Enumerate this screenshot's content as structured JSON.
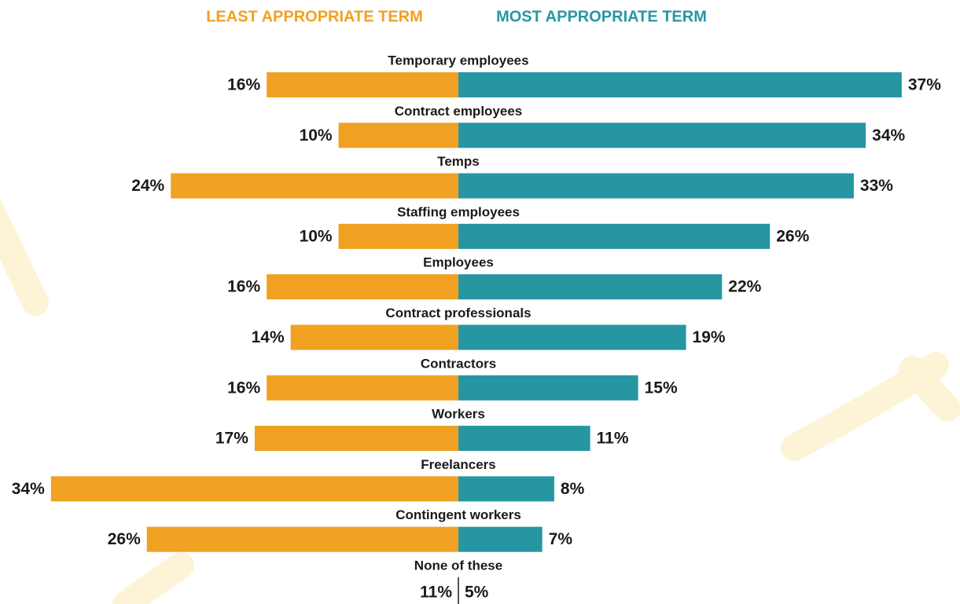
{
  "chart_data": {
    "type": "diverging-bar",
    "categories": [
      "Temporary employees",
      "Contract employees",
      "Temps",
      "Staffing employees",
      "Employees",
      "Contract professionals",
      "Contractors",
      "Workers",
      "Freelancers",
      "Contingent workers"
    ],
    "series": [
      {
        "name": "LEAST APPROPRIATE TERM",
        "color": "#f0a122",
        "values": [
          16,
          10,
          24,
          10,
          16,
          14,
          16,
          17,
          34,
          26
        ],
        "value_labels": [
          "16%",
          "10%",
          "24%",
          "10%",
          "16%",
          "14%",
          "16%",
          "17%",
          "34%",
          "26%"
        ]
      },
      {
        "name": "MOST APPROPRIATE TERM",
        "color": "#2696a3",
        "values": [
          37,
          34,
          33,
          26,
          22,
          19,
          15,
          11,
          8,
          7
        ],
        "value_labels": [
          "37%",
          "34%",
          "33%",
          "26%",
          "22%",
          "19%",
          "15%",
          "11%",
          "8%",
          "7%"
        ]
      }
    ],
    "extra": {
      "category": "None of these",
      "values": [
        11,
        5
      ],
      "value_labels": [
        "11%",
        "5%"
      ]
    }
  }
}
